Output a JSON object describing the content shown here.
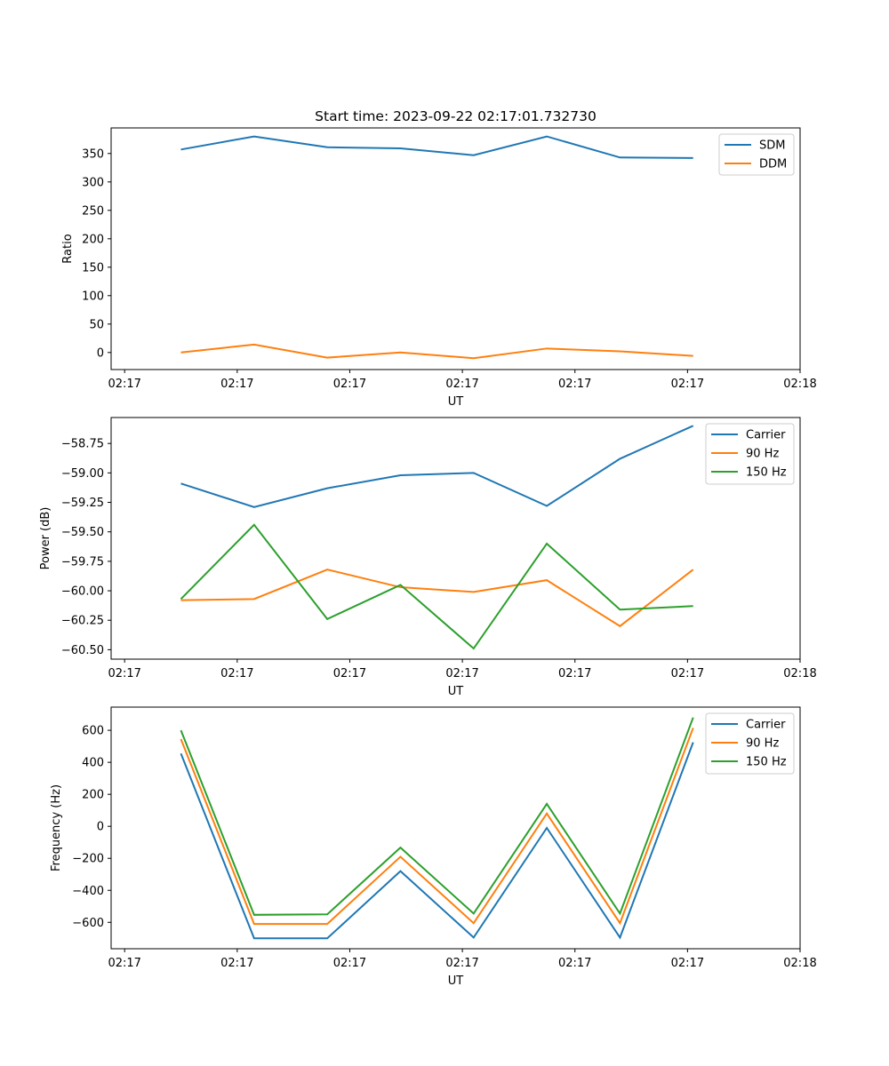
{
  "chart_data": [
    {
      "type": "line",
      "title": "Start time: 2023-09-22 02:17:01.732730",
      "xlabel": "UT",
      "ylabel": "Ratio",
      "grid": false,
      "legend_position": "top-right",
      "x_tick_labels": [
        "02:17",
        "02:17",
        "02:17",
        "02:17",
        "02:17",
        "02:17",
        "02:18"
      ],
      "x_ticks": [
        0,
        1,
        2,
        3,
        4,
        5,
        6
      ],
      "x_range": [
        -0.12,
        6.0
      ],
      "x": [
        0.5,
        1.15,
        1.8,
        2.45,
        3.1,
        3.75,
        4.4,
        5.05
      ],
      "ylim": [
        -30,
        395
      ],
      "y_ticks": [
        0,
        50,
        100,
        150,
        200,
        250,
        300,
        350
      ],
      "y_tick_labels": [
        "0",
        "50",
        "100",
        "150",
        "200",
        "250",
        "300",
        "350"
      ],
      "series": [
        {
          "name": "SDM",
          "color": "#1f77b4",
          "values": [
            357,
            380,
            361,
            359,
            347,
            380,
            343,
            342
          ]
        },
        {
          "name": "DDM",
          "color": "#ff7f0e",
          "values": [
            0,
            14,
            -9,
            0,
            -10,
            7,
            2,
            -6
          ]
        }
      ]
    },
    {
      "type": "line",
      "title": "",
      "xlabel": "UT",
      "ylabel": "Power (dB)",
      "grid": false,
      "legend_position": "top-right",
      "x_tick_labels": [
        "02:17",
        "02:17",
        "02:17",
        "02:17",
        "02:17",
        "02:17",
        "02:18"
      ],
      "x_ticks": [
        0,
        1,
        2,
        3,
        4,
        5,
        6
      ],
      "x_range": [
        -0.12,
        6.0
      ],
      "x": [
        0.5,
        1.15,
        1.8,
        2.45,
        3.1,
        3.75,
        4.4,
        5.05
      ],
      "ylim": [
        -60.58,
        -58.53
      ],
      "y_ticks": [
        -60.5,
        -60.25,
        -60.0,
        -59.75,
        -59.5,
        -59.25,
        -59.0,
        -58.75
      ],
      "y_tick_labels": [
        "−60.50",
        "−60.25",
        "−60.00",
        "−59.75",
        "−59.50",
        "−59.25",
        "−59.00",
        "−58.75"
      ],
      "series": [
        {
          "name": "Carrier",
          "color": "#1f77b4",
          "values": [
            -59.09,
            -59.29,
            -59.13,
            -59.02,
            -59.0,
            -59.28,
            -58.88,
            -58.6
          ]
        },
        {
          "name": "90 Hz",
          "color": "#ff7f0e",
          "values": [
            -60.08,
            -60.07,
            -59.82,
            -59.97,
            -60.01,
            -59.91,
            -60.3,
            -59.82
          ]
        },
        {
          "name": "150 Hz",
          "color": "#2ca02c",
          "values": [
            -60.07,
            -59.44,
            -60.24,
            -59.95,
            -60.49,
            -59.6,
            -60.16,
            -60.13
          ]
        }
      ]
    },
    {
      "type": "line",
      "title": "",
      "xlabel": "UT",
      "ylabel": "Frequency (Hz)",
      "grid": false,
      "legend_position": "top-right",
      "x_tick_labels": [
        "02:17",
        "02:17",
        "02:17",
        "02:17",
        "02:17",
        "02:17",
        "02:18"
      ],
      "x_ticks": [
        0,
        1,
        2,
        3,
        4,
        5,
        6
      ],
      "x_range": [
        -0.12,
        6.0
      ],
      "x": [
        0.5,
        1.15,
        1.8,
        2.45,
        3.1,
        3.75,
        4.4,
        5.05
      ],
      "ylim": [
        -765,
        745
      ],
      "y_ticks": [
        -600,
        -400,
        -200,
        0,
        200,
        400,
        600
      ],
      "y_tick_labels": [
        "−600",
        "−400",
        "−200",
        "0",
        "200",
        "400",
        "600"
      ],
      "series": [
        {
          "name": "Carrier",
          "color": "#1f77b4",
          "values": [
            455,
            -700,
            -700,
            -280,
            -695,
            -10,
            -695,
            525
          ]
        },
        {
          "name": "90 Hz",
          "color": "#ff7f0e",
          "values": [
            545,
            -610,
            -610,
            -190,
            -605,
            80,
            -605,
            615
          ]
        },
        {
          "name": "150 Hz",
          "color": "#2ca02c",
          "values": [
            600,
            -553,
            -550,
            -133,
            -545,
            140,
            -545,
            680
          ]
        }
      ]
    }
  ]
}
